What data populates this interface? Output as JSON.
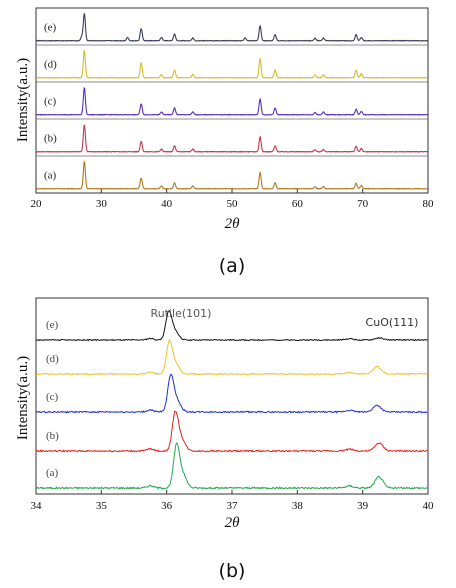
{
  "chart_data": [
    {
      "type": "line",
      "subplot_label": "(a)",
      "ylabel": "Intensity(a.u.)",
      "xlabel": "2θ",
      "xlim": [
        20,
        80
      ],
      "xticks": [
        "20",
        "30",
        "40",
        "50",
        "60",
        "70",
        "80"
      ],
      "grid": false,
      "legend": "none",
      "series": [
        {
          "name": "(a)",
          "color": "#b07a1c",
          "peaks": [
            {
              "x": 27.4,
              "h": 1.0
            },
            {
              "x": 36.1,
              "h": 0.4
            },
            {
              "x": 39.2,
              "h": 0.1
            },
            {
              "x": 41.2,
              "h": 0.22
            },
            {
              "x": 44.0,
              "h": 0.1
            },
            {
              "x": 54.3,
              "h": 0.6
            },
            {
              "x": 56.6,
              "h": 0.22
            },
            {
              "x": 62.7,
              "h": 0.08
            },
            {
              "x": 64.0,
              "h": 0.08
            },
            {
              "x": 69.0,
              "h": 0.2
            },
            {
              "x": 69.8,
              "h": 0.12
            }
          ]
        },
        {
          "name": "(b)",
          "color": "#c0394f",
          "peaks": [
            {
              "x": 27.4,
              "h": 1.0
            },
            {
              "x": 36.1,
              "h": 0.38
            },
            {
              "x": 39.2,
              "h": 0.1
            },
            {
              "x": 41.2,
              "h": 0.22
            },
            {
              "x": 44.0,
              "h": 0.1
            },
            {
              "x": 54.3,
              "h": 0.55
            },
            {
              "x": 56.6,
              "h": 0.22
            },
            {
              "x": 62.7,
              "h": 0.08
            },
            {
              "x": 64.0,
              "h": 0.08
            },
            {
              "x": 69.0,
              "h": 0.2
            },
            {
              "x": 69.8,
              "h": 0.12
            }
          ]
        },
        {
          "name": "(c)",
          "color": "#5a2fbf",
          "peaks": [
            {
              "x": 27.4,
              "h": 1.0
            },
            {
              "x": 36.1,
              "h": 0.4
            },
            {
              "x": 39.2,
              "h": 0.1
            },
            {
              "x": 41.2,
              "h": 0.25
            },
            {
              "x": 44.0,
              "h": 0.1
            },
            {
              "x": 54.3,
              "h": 0.58
            },
            {
              "x": 56.6,
              "h": 0.25
            },
            {
              "x": 62.7,
              "h": 0.08
            },
            {
              "x": 64.0,
              "h": 0.1
            },
            {
              "x": 69.0,
              "h": 0.2
            },
            {
              "x": 69.8,
              "h": 0.12
            }
          ]
        },
        {
          "name": "(d)",
          "color": "#d8bd2a",
          "peaks": [
            {
              "x": 27.4,
              "h": 1.0
            },
            {
              "x": 36.1,
              "h": 0.55
            },
            {
              "x": 39.2,
              "h": 0.12
            },
            {
              "x": 41.2,
              "h": 0.28
            },
            {
              "x": 44.0,
              "h": 0.12
            },
            {
              "x": 54.3,
              "h": 0.7
            },
            {
              "x": 56.6,
              "h": 0.28
            },
            {
              "x": 62.7,
              "h": 0.1
            },
            {
              "x": 64.0,
              "h": 0.1
            },
            {
              "x": 69.0,
              "h": 0.28
            },
            {
              "x": 69.8,
              "h": 0.15
            }
          ]
        },
        {
          "name": "(e)",
          "color": "#3a3d5c",
          "peaks": [
            {
              "x": 27.0,
              "h": 0.15
            },
            {
              "x": 27.4,
              "h": 1.0
            },
            {
              "x": 34.0,
              "h": 0.12
            },
            {
              "x": 36.1,
              "h": 0.45
            },
            {
              "x": 39.2,
              "h": 0.12
            },
            {
              "x": 41.2,
              "h": 0.25
            },
            {
              "x": 44.0,
              "h": 0.1
            },
            {
              "x": 52.0,
              "h": 0.1
            },
            {
              "x": 54.3,
              "h": 0.55
            },
            {
              "x": 56.6,
              "h": 0.22
            },
            {
              "x": 62.7,
              "h": 0.1
            },
            {
              "x": 64.0,
              "h": 0.1
            },
            {
              "x": 69.0,
              "h": 0.22
            },
            {
              "x": 69.8,
              "h": 0.12
            }
          ]
        }
      ]
    },
    {
      "type": "line",
      "subplot_label": "(b)",
      "ylabel": "Intensity(a.u.)",
      "xlabel": "2θ",
      "xlim": [
        34,
        40
      ],
      "xticks": [
        "34",
        "35",
        "36",
        "37",
        "38",
        "39",
        "40"
      ],
      "grid": false,
      "legend": "none",
      "annotations": [
        "Rutile(101)",
        "CuO(111)"
      ],
      "series": [
        {
          "name": "(a)",
          "color": "#22a94a",
          "rutile_peak_x": 36.15,
          "rutile_h": 1.0,
          "cuo_peak_x": 39.25,
          "cuo_h": 0.28
        },
        {
          "name": "(b)",
          "color": "#e02020",
          "rutile_peak_x": 36.13,
          "rutile_h": 1.0,
          "cuo_peak_x": 39.25,
          "cuo_h": 0.22
        },
        {
          "name": "(c)",
          "color": "#1f2fd8",
          "rutile_peak_x": 36.06,
          "rutile_h": 1.0,
          "cuo_peak_x": 39.22,
          "cuo_h": 0.2
        },
        {
          "name": "(d)",
          "color": "#f2c12e",
          "rutile_peak_x": 36.04,
          "rutile_h": 1.0,
          "cuo_peak_x": 39.22,
          "cuo_h": 0.25
        },
        {
          "name": "(e)",
          "color": "#111111",
          "rutile_peak_x": 36.03,
          "rutile_h": 1.0,
          "cuo_peak_x": 39.25,
          "cuo_h": 0.08
        }
      ]
    }
  ]
}
